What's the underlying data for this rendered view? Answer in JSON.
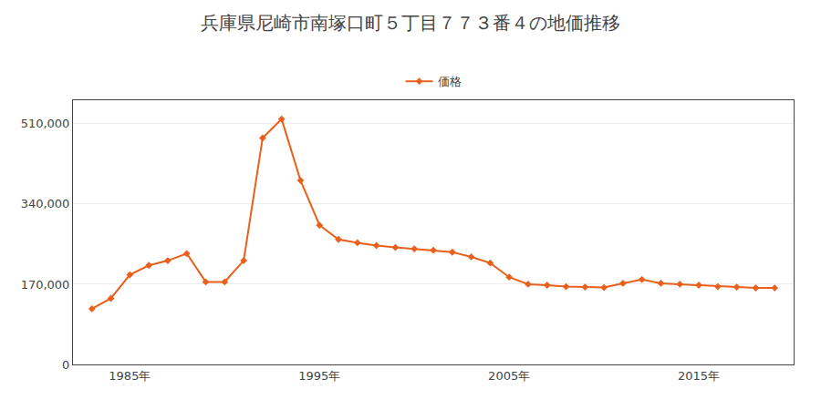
{
  "chart_data": {
    "type": "line",
    "title": "兵庫県尼崎市南塚口町５丁目７７３番４の地価推移",
    "x": [
      1983,
      1984,
      1985,
      1986,
      1987,
      1988,
      1989,
      1990,
      1991,
      1992,
      1993,
      1994,
      1995,
      1996,
      1997,
      1998,
      1999,
      2000,
      2001,
      2002,
      2003,
      2004,
      2005,
      2006,
      2007,
      2008,
      2009,
      2010,
      2011,
      2012,
      2013,
      2014,
      2015,
      2016,
      2017,
      2018,
      2019
    ],
    "series": [
      {
        "name": "価格",
        "color": "#E8601C",
        "marker": "diamond",
        "values": [
          118000,
          140000,
          190000,
          210000,
          220000,
          235000,
          175000,
          175000,
          220000,
          480000,
          520000,
          390000,
          295000,
          265000,
          258000,
          252000,
          248000,
          245000,
          242000,
          238000,
          228000,
          215000,
          185000,
          170000,
          168000,
          165000,
          164000,
          163000,
          172000,
          180000,
          172000,
          170000,
          168000,
          165000,
          164000,
          162000,
          162000
        ]
      }
    ],
    "xlim": [
      1982,
      2020
    ],
    "xticks": [
      {
        "value": 1985,
        "label": "1985年"
      },
      {
        "value": 1995,
        "label": "1995年"
      },
      {
        "value": 2005,
        "label": "2005年"
      },
      {
        "value": 2015,
        "label": "2015年"
      }
    ],
    "ylim": [
      0,
      560000
    ],
    "yticks": [
      0,
      {
        "value": 170000,
        "label": "170,000"
      },
      {
        "value": 340000,
        "label": "340,000"
      },
      {
        "value": 510000,
        "label": "510,000"
      }
    ],
    "grid": "y",
    "legend": "upper center"
  }
}
